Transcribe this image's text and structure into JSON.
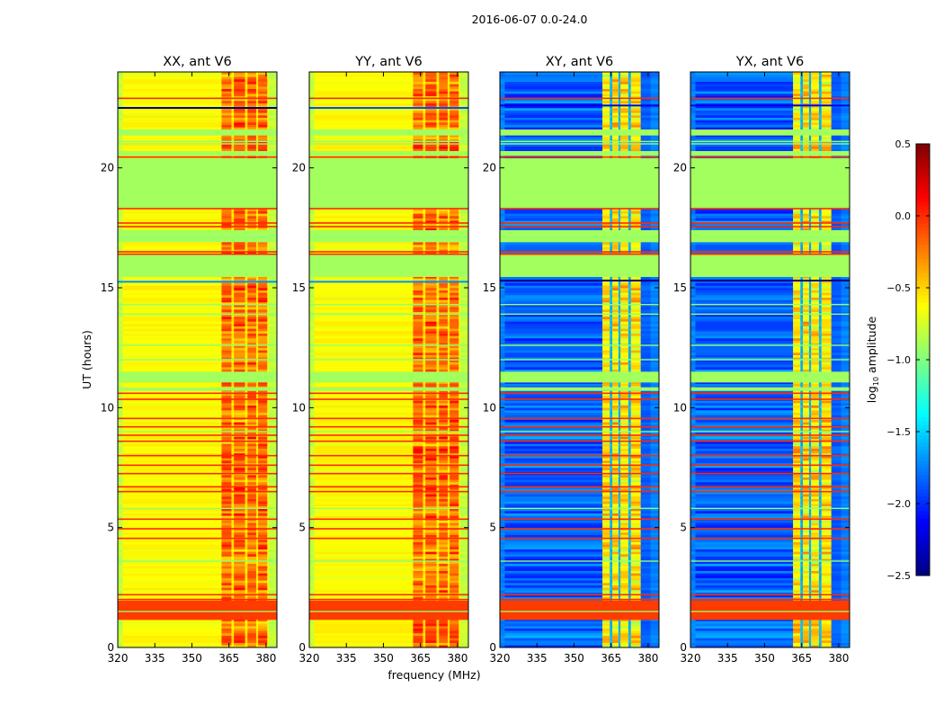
{
  "chart_data": {
    "type": "heatmap",
    "title": "2016-06-07 0.0-24.0",
    "xlabel": "frequency (MHz)",
    "ylabel": "UT (hours)",
    "xlim": [
      320,
      384.4
    ],
    "ylim": [
      0,
      24
    ],
    "xticks": [
      320,
      335,
      350,
      365,
      380
    ],
    "xtick_labels": [
      "320",
      "335",
      "350",
      "365",
      "380"
    ],
    "yticks": [
      0,
      5,
      10,
      15,
      20
    ],
    "ytick_labels": [
      "0",
      "5",
      "10",
      "15",
      "20"
    ],
    "colormap": "jet",
    "colorbar": {
      "range": [
        -2.5,
        0.5
      ],
      "ticks": [
        0.5,
        0.0,
        -0.5,
        -1.0,
        -1.5,
        -2.0,
        -2.5
      ],
      "tick_labels": [
        "0.5",
        "0.0",
        "−0.5",
        "−1.0",
        "−1.5",
        "−2.0",
        "−2.5"
      ],
      "label_parts": [
        "log",
        "10",
        " amplitude"
      ]
    },
    "time_structure": {
      "flagged_ranges_hours": [
        [
          21.35,
          21.6
        ],
        [
          20.5,
          20.7
        ],
        [
          18.3,
          20.4
        ],
        [
          16.9,
          17.4
        ],
        [
          15.45,
          16.4
        ],
        [
          11.05,
          11.5
        ],
        [
          10.7,
          10.85
        ]
      ],
      "flagged_value": -0.9,
      "strong_lines_hours": [
        22.9,
        20.45,
        18.3,
        17.7,
        17.55,
        16.5,
        16.4,
        10.6,
        10.35,
        9.55,
        9.2,
        8.85,
        8.6,
        8.0,
        7.6,
        7.25,
        6.7,
        6.5,
        5.35,
        4.95,
        4.55,
        2.2,
        2.0
      ],
      "strong_line_value": 0.0,
      "band_hours": [
        1.15,
        1.95
      ],
      "band_value": -0.05,
      "green_lines_hours": [
        1.5,
        3.6,
        12.6,
        13.9,
        21.1,
        21.0,
        17.1,
        12.0,
        14.3,
        5.8,
        9.0
      ]
    },
    "panels": [
      {
        "title": "XX, ant V6",
        "base_value": -0.62,
        "edge_value": -0.8,
        "rfi_value": -0.2,
        "gap_value": -0.55,
        "rfi_columns_mhz": [
          [
            362,
            366
          ],
          [
            367,
            371.5
          ],
          [
            372.5,
            376
          ],
          [
            376.8,
            380.5
          ]
        ],
        "extra_lines": [
          {
            "hour": 15.25,
            "value": -1.7
          },
          {
            "hour": 22.5,
            "value": -2.5
          }
        ]
      },
      {
        "title": "YY, ant V6",
        "base_value": -0.62,
        "edge_value": -0.8,
        "rfi_value": -0.2,
        "gap_value": -0.55,
        "rfi_columns_mhz": [
          [
            362,
            366
          ],
          [
            367,
            371.5
          ],
          [
            372.5,
            376
          ],
          [
            376.8,
            380.5
          ]
        ],
        "extra_lines": [
          {
            "hour": 15.25,
            "value": -1.7
          },
          {
            "hour": 22.5,
            "value": -1.9
          }
        ]
      },
      {
        "title": "XY, ant V6",
        "base_value": -1.85,
        "edge_value": -1.75,
        "rfi_value": -0.55,
        "gap_value": -1.6,
        "rfi_columns_mhz": [
          [
            361.5,
            364.5
          ],
          [
            365.5,
            368
          ],
          [
            368.8,
            372
          ],
          [
            373,
            377
          ]
        ],
        "extra_lines": [
          {
            "hour": 15.3,
            "value": -2.5
          },
          {
            "hour": 22.6,
            "value": -2.2
          }
        ]
      },
      {
        "title": "YX, ant V6",
        "base_value": -1.85,
        "edge_value": -1.75,
        "rfi_value": -0.55,
        "gap_value": -1.6,
        "rfi_columns_mhz": [
          [
            361.5,
            364.5
          ],
          [
            365.5,
            368
          ],
          [
            368.8,
            372
          ],
          [
            373,
            377
          ]
        ],
        "extra_lines": [
          {
            "hour": 15.3,
            "value": -2.5
          },
          {
            "hour": 22.6,
            "value": -2.2
          }
        ]
      }
    ]
  }
}
